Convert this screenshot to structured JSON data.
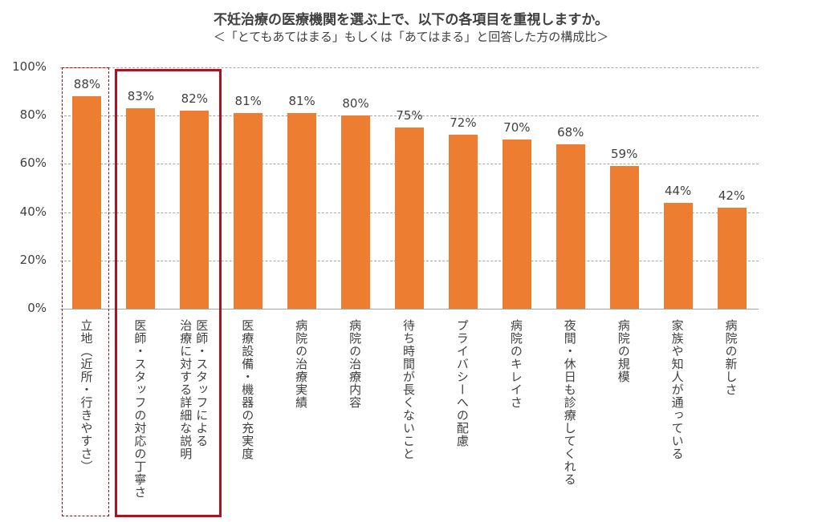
{
  "chart_data": {
    "type": "bar",
    "title": "不妊治療の医療機関を選ぶ上で、以下の各項目を重視しますか。",
    "subtitle": "＜「とてもあてはまる」もしくは「あてはまる」と回答した方の構成比＞",
    "categories": [
      "立地（近所・行きやすさ）",
      "医師・スタッフの対応の丁寧さ",
      "医師・スタッフによる\n治療に対する詳細な説明",
      "医療設備・機器の充実度",
      "病院の治療実績",
      "病院の治療内容",
      "待ち時間が長くないこと",
      "プライバシーへの配慮",
      "病院のキレイさ",
      "夜間・休日も診療してくれる",
      "病院の規模",
      "家族や知人が通っている",
      "病院の新しさ"
    ],
    "values": [
      88,
      83,
      82,
      81,
      81,
      80,
      75,
      72,
      70,
      68,
      59,
      44,
      42
    ],
    "value_labels": [
      "88%",
      "83%",
      "82%",
      "81%",
      "81%",
      "80%",
      "75%",
      "72%",
      "70%",
      "68%",
      "59%",
      "44%",
      "42%"
    ],
    "ylim": [
      0,
      100
    ],
    "yticks": [
      "0%",
      "20%",
      "40%",
      "60%",
      "80%",
      "100%"
    ],
    "grid": true,
    "bar_color": "#ed7d31",
    "highlight": {
      "dashed_box_categories": [
        0
      ],
      "solid_box_categories": [
        1,
        2
      ],
      "color": "#c00000"
    }
  }
}
